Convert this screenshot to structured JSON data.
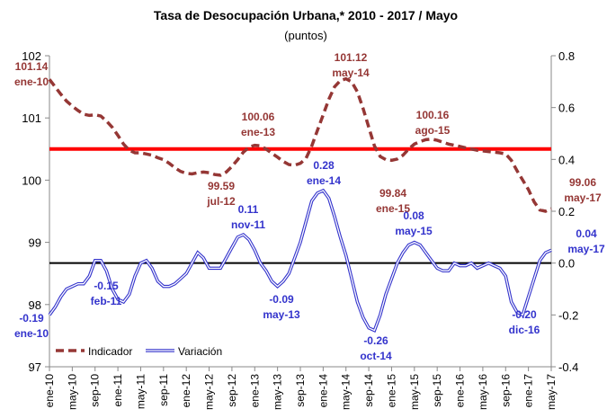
{
  "chart_data": {
    "type": "line",
    "title": "Tasa de Desocupación Urbana,* 2010 - 2017 / Mayo",
    "subtitle": "(puntos)",
    "categories": [
      "ene-10",
      null,
      null,
      null,
      "may-10",
      null,
      null,
      null,
      "sep-10",
      null,
      null,
      null,
      "ene-11",
      null,
      null,
      null,
      "may-11",
      null,
      null,
      null,
      "sep-11",
      null,
      null,
      null,
      "ene-12",
      null,
      null,
      null,
      "may-12",
      null,
      null,
      null,
      "sep-12",
      null,
      null,
      null,
      "ene-13",
      null,
      null,
      null,
      "may-13",
      null,
      null,
      null,
      "sep-13",
      null,
      null,
      null,
      "ene-14",
      null,
      null,
      null,
      "may-14",
      null,
      null,
      null,
      "sep-14",
      null,
      null,
      null,
      "ene-15",
      null,
      null,
      null,
      "may-15",
      null,
      null,
      null,
      "sep-15",
      null,
      null,
      null,
      "ene-16",
      null,
      null,
      null,
      "may-16",
      null,
      null,
      null,
      "sep-16",
      null,
      null,
      null,
      "ene-17",
      null,
      null,
      null,
      "may-17"
    ],
    "series": [
      {
        "name": "Indicador",
        "color": "#953735",
        "axis": "y",
        "values": [
          101.62,
          101.5,
          101.38,
          101.27,
          101.19,
          101.12,
          101.06,
          101.04,
          101.05,
          101.03,
          100.95,
          100.85,
          100.72,
          100.58,
          100.48,
          100.44,
          100.44,
          100.42,
          100.4,
          100.36,
          100.33,
          100.27,
          100.2,
          100.14,
          100.11,
          100.1,
          100.12,
          100.13,
          100.12,
          100.09,
          100.08,
          100.13,
          100.22,
          100.33,
          100.45,
          100.53,
          100.56,
          100.55,
          100.5,
          100.43,
          100.37,
          100.3,
          100.25,
          100.24,
          100.27,
          100.35,
          100.55,
          100.8,
          101.05,
          101.3,
          101.5,
          101.6,
          101.63,
          101.58,
          101.42,
          101.15,
          100.85,
          100.55,
          100.38,
          100.33,
          100.32,
          100.34,
          100.4,
          100.5,
          100.58,
          100.62,
          100.65,
          100.66,
          100.64,
          100.61,
          100.58,
          100.56,
          100.54,
          100.52,
          100.5,
          100.48,
          100.47,
          100.46,
          100.45,
          100.44,
          100.42,
          100.32,
          100.15,
          100.0,
          99.85,
          99.65,
          99.52,
          99.5,
          99.54
        ]
      },
      {
        "name": "Variación",
        "color": "#3333cc",
        "axis": "y2",
        "values": [
          -0.2,
          -0.17,
          -0.13,
          -0.1,
          -0.09,
          -0.08,
          -0.08,
          -0.05,
          0.01,
          0.01,
          -0.03,
          -0.1,
          -0.14,
          -0.15,
          -0.12,
          -0.05,
          0.0,
          0.01,
          -0.02,
          -0.07,
          -0.09,
          -0.09,
          -0.08,
          -0.06,
          -0.04,
          0.0,
          0.04,
          0.02,
          -0.02,
          -0.02,
          -0.02,
          0.02,
          0.06,
          0.1,
          0.11,
          0.09,
          0.05,
          0.0,
          -0.03,
          -0.07,
          -0.09,
          -0.07,
          -0.04,
          0.02,
          0.08,
          0.16,
          0.24,
          0.27,
          0.28,
          0.25,
          0.18,
          0.1,
          0.03,
          -0.06,
          -0.15,
          -0.21,
          -0.25,
          -0.26,
          -0.2,
          -0.12,
          -0.06,
          0.0,
          0.04,
          0.07,
          0.08,
          0.07,
          0.04,
          0.01,
          -0.02,
          -0.03,
          -0.03,
          0.0,
          -0.01,
          -0.01,
          0.0,
          -0.02,
          -0.01,
          0.0,
          -0.01,
          -0.02,
          -0.05,
          -0.15,
          -0.19,
          -0.2,
          -0.13,
          -0.06,
          0.01,
          0.04,
          0.05
        ]
      }
    ],
    "ylim": [
      97,
      102
    ],
    "yticks": [
      97,
      98,
      99,
      100,
      101,
      102
    ],
    "y2lim": [
      -0.4,
      0.8
    ],
    "y2ticks": [
      -0.4,
      -0.2,
      {
        "value": 0,
        "label": "0.0"
      },
      0.2,
      0.4,
      0.6,
      0.8
    ],
    "reference_lines": [
      {
        "axis": "y",
        "value": 100.5,
        "color": "#ff0000"
      },
      {
        "axis": "y2",
        "value": 0,
        "color": "#000000"
      }
    ],
    "annotations": [
      {
        "value": "101.14",
        "date": "ene-10",
        "color": "#953735"
      },
      {
        "value": "99.59",
        "date": "jul-12",
        "color": "#953735"
      },
      {
        "value": "100.06",
        "date": "ene-13",
        "color": "#953735"
      },
      {
        "value": "101.12",
        "date": "may-14",
        "color": "#953735"
      },
      {
        "value": "99.84",
        "date": "ene-15",
        "color": "#953735"
      },
      {
        "value": "100.16",
        "date": "ago-15",
        "color": "#953735"
      },
      {
        "value": "99.06",
        "date": "may-17",
        "color": "#953735"
      },
      {
        "value": "-0.19",
        "date": "ene-10",
        "color": "#3333cc"
      },
      {
        "value": "-0.15",
        "date": "feb-11",
        "color": "#3333cc"
      },
      {
        "value": "0.11",
        "date": "nov-11",
        "color": "#3333cc"
      },
      {
        "value": "-0.09",
        "date": "may-13",
        "color": "#3333cc"
      },
      {
        "value": "0.28",
        "date": "ene-14",
        "color": "#3333cc"
      },
      {
        "value": "-0.26",
        "date": "oct-14",
        "color": "#3333cc"
      },
      {
        "value": "0.08",
        "date": "may-15",
        "color": "#3333cc"
      },
      {
        "value": "-0.20",
        "date": "dic-16",
        "color": "#3333cc"
      },
      {
        "value": "0.04",
        "date": "may-17",
        "color": "#3333cc"
      }
    ],
    "legend": "lower left"
  }
}
